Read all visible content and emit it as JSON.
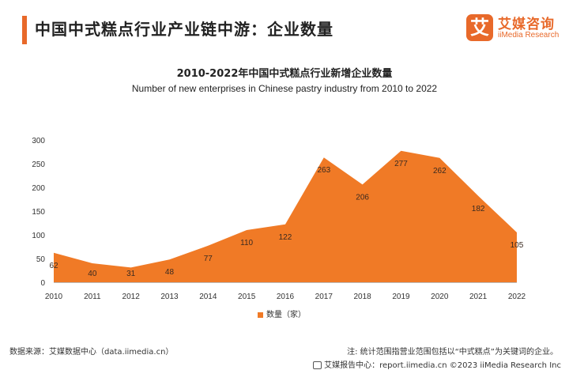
{
  "header": {
    "title": "中国中式糕点行业产业链中游：企业数量"
  },
  "logo": {
    "cn": "艾媒咨询",
    "en": "iiMedia Research",
    "mark": "艾"
  },
  "colors": {
    "accent": "#e8692a",
    "area": "#f07a26"
  },
  "chart_data": {
    "type": "area",
    "title": "2010-2022年中国中式糕点行业新增企业数量",
    "subtitle": "Number of new enterprises in Chinese pastry industry from 2010 to 2022",
    "x": [
      "2010",
      "2011",
      "2012",
      "2013",
      "2014",
      "2015",
      "2016",
      "2017",
      "2018",
      "2019",
      "2020",
      "2021",
      "2022"
    ],
    "series": [
      {
        "name": "数量（家）",
        "values": [
          62,
          40,
          31,
          48,
          77,
          110,
          122,
          263,
          206,
          277,
          262,
          182,
          105
        ]
      }
    ],
    "yticks": [
      "0",
      "50",
      "100",
      "150",
      "200",
      "250",
      "300"
    ],
    "ylim": [
      0,
      300
    ],
    "grid": false,
    "legend_position": "bottom"
  },
  "footer": {
    "source": "数据来源：艾媒数据中心（data.iimedia.cn）",
    "note": "注: 统计范围指营业范围包括以“中式糕点”为关键词的企业。",
    "report": "艾媒报告中心：report.iimedia.cn ©2023 iiMedia Research Inc"
  }
}
